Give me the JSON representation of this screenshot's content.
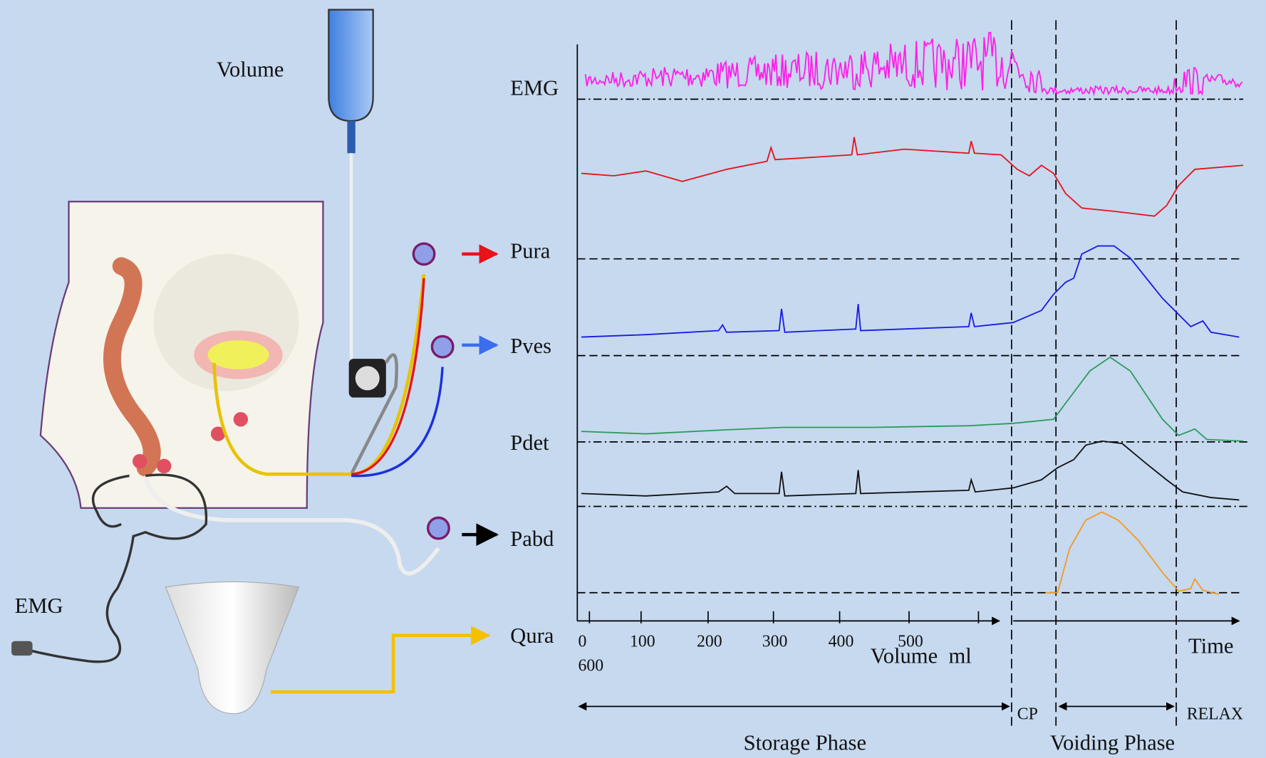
{
  "left_labels": {
    "volume": "Volume",
    "emg": "EMG"
  },
  "channels": [
    "EMG",
    "Pura",
    "Pves",
    "Pdet",
    "Pabd",
    "Qura"
  ],
  "volume_axis": {
    "ticks": [
      0,
      100,
      200,
      300,
      400,
      500
    ],
    "extra": 600,
    "label": "Volume  ml"
  },
  "time_label": "Time",
  "phases": {
    "cp": "CP",
    "relax": "RELAX",
    "storage": "Storage Phase",
    "voiding": "Voiding Phase"
  }
}
